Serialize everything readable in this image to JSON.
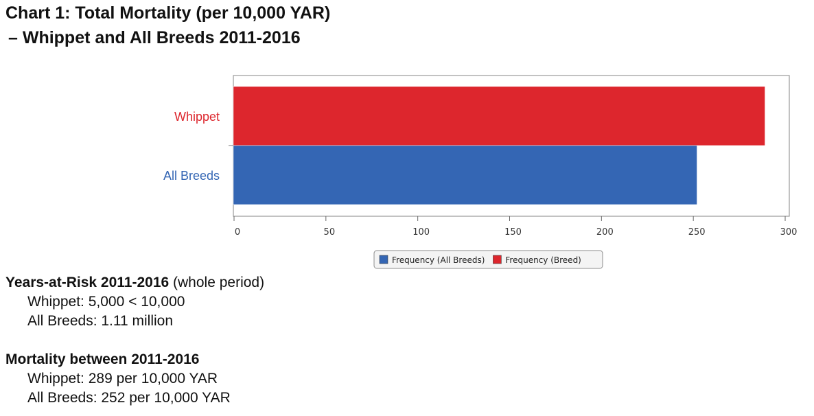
{
  "title": {
    "line1": "Chart 1: Total Mortality (per 10,000 YAR)",
    "line2": "–  Whippet and All Breeds 2011-2016"
  },
  "chart_data": {
    "type": "bar",
    "orientation": "horizontal",
    "categories": [
      "Whippet",
      "All Breeds"
    ],
    "series": [
      {
        "name": "Frequency (Breed)",
        "category": "Whippet",
        "value": 289,
        "color": "#dd262d"
      },
      {
        "name": "Frequency (All Breeds)",
        "category": "All Breeds",
        "value": 252,
        "color": "#3466b4"
      }
    ],
    "category_label_colors": {
      "Whippet": "#dd262d",
      "All Breeds": "#3466b4"
    },
    "xticks": [
      0,
      50,
      100,
      150,
      200,
      250,
      300
    ],
    "xlim": [
      0,
      300
    ],
    "grid": false,
    "legend_position": "bottom",
    "legend": [
      {
        "label": "Frequency (All Breeds)",
        "color": "#3466b4"
      },
      {
        "label": "Frequency (Breed)",
        "color": "#dd262d"
      }
    ]
  },
  "years_at_risk": {
    "heading_bold": "Years-at-Risk 2011-2016",
    "heading_rest": " (whole period)",
    "whippet": "Whippet: 5,000 < 10,000",
    "all_breeds": "All Breeds: 1.11 million"
  },
  "mortality": {
    "heading": "Mortality between 2011-2016",
    "whippet": "Whippet: 289  per 10,000 YAR",
    "all_breeds": "All Breeds: 252 per 10,000 YAR"
  }
}
